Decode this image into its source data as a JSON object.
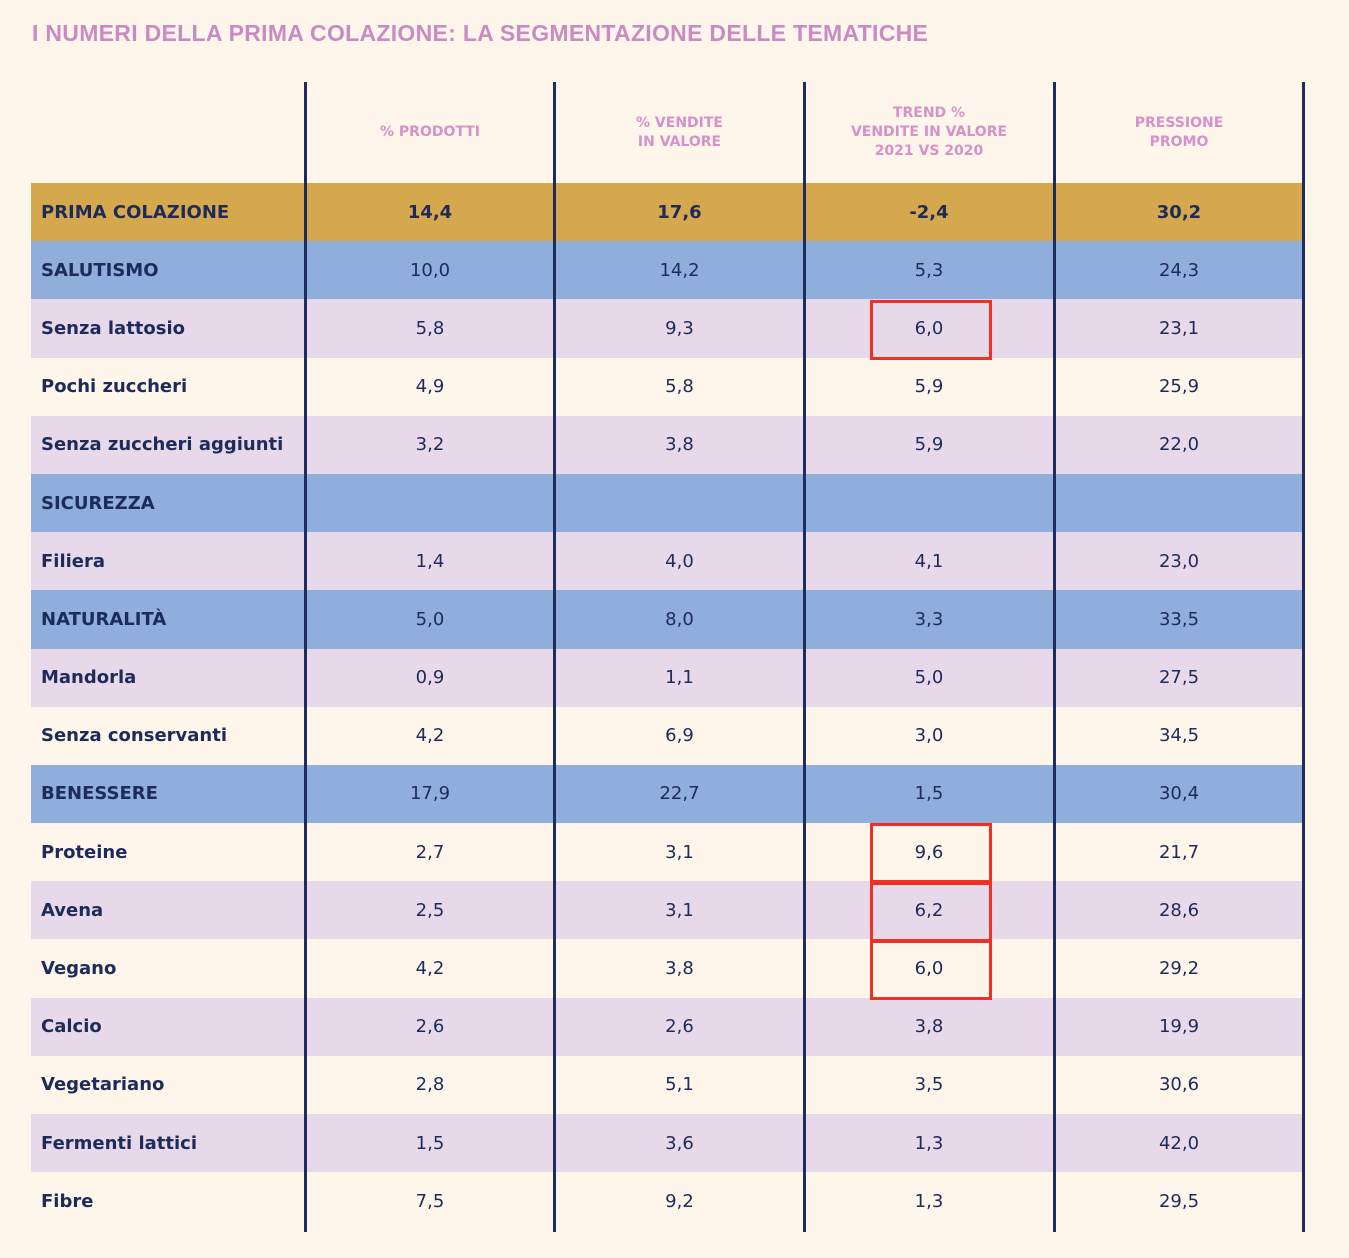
{
  "title": "I NUMERI DELLA PRIMA COLAZIONE: LA SEGMENTAZIONE DELLE TEMATICHE",
  "colors": {
    "background": "#FEF6EA",
    "title": "#C98BC1",
    "header": "#D591C8",
    "main_row": "#D6A84E",
    "category_row": "#8FAEDB",
    "alt_row": "#E8D9EA",
    "text": "#1C2B5A",
    "column_lines": "#1D2D5E",
    "highlight": "#EE3124"
  },
  "chart_data": {
    "type": "table",
    "title": "I NUMERI DELLA PRIMA COLAZIONE: LA SEGMENTAZIONE DELLE TEMATICHE",
    "columns": [
      "",
      "% PRODOTTI",
      "% VENDITE\nIN VALORE",
      "TREND %\nVENDITE IN VALORE\n2021 VS 2020",
      "PRESSIONE\nPROMO"
    ],
    "rows": [
      {
        "label": "PRIMA COLAZIONE",
        "kind": "main",
        "values": [
          "14,4",
          "17,6",
          "-2,4",
          "30,2"
        ]
      },
      {
        "label": "SALUTISMO",
        "kind": "cat",
        "values": [
          "10,0",
          "14,2",
          "5,3",
          "24,3"
        ]
      },
      {
        "label": "Senza lattosio",
        "kind": "sub-a",
        "values": [
          "5,8",
          "9,3",
          "6,0",
          "23,1"
        ]
      },
      {
        "label": "Pochi zuccheri",
        "kind": "sub-b",
        "values": [
          "4,9",
          "5,8",
          "5,9",
          "25,9"
        ]
      },
      {
        "label": "Senza zuccheri aggiunti",
        "kind": "sub-a",
        "values": [
          "3,2",
          "3,8",
          "5,9",
          "22,0"
        ]
      },
      {
        "label": "SICUREZZA",
        "kind": "cat",
        "values": [
          "",
          "",
          "",
          ""
        ]
      },
      {
        "label": "Filiera",
        "kind": "sub-a",
        "values": [
          "1,4",
          "4,0",
          "4,1",
          "23,0"
        ]
      },
      {
        "label": "NATURALITÀ",
        "kind": "cat",
        "values": [
          "5,0",
          "8,0",
          "3,3",
          "33,5"
        ]
      },
      {
        "label": "Mandorla",
        "kind": "sub-a",
        "values": [
          "0,9",
          "1,1",
          "5,0",
          "27,5"
        ]
      },
      {
        "label": "Senza conservanti",
        "kind": "sub-b",
        "values": [
          "4,2",
          "6,9",
          "3,0",
          "34,5"
        ]
      },
      {
        "label": "BENESSERE",
        "kind": "cat",
        "values": [
          "17,9",
          "22,7",
          "1,5",
          "30,4"
        ]
      },
      {
        "label": "Proteine",
        "kind": "sub-b",
        "values": [
          "2,7",
          "3,1",
          "9,6",
          "21,7"
        ]
      },
      {
        "label": "Avena",
        "kind": "sub-a",
        "values": [
          "2,5",
          "3,1",
          "6,2",
          "28,6"
        ]
      },
      {
        "label": "Vegano",
        "kind": "sub-b",
        "values": [
          "4,2",
          "3,8",
          "6,0",
          "29,2"
        ]
      },
      {
        "label": "Calcio",
        "kind": "sub-a",
        "values": [
          "2,6",
          "2,6",
          "3,8",
          "19,9"
        ]
      },
      {
        "label": "Vegetariano",
        "kind": "sub-b",
        "values": [
          "2,8",
          "5,1",
          "3,5",
          "30,6"
        ]
      },
      {
        "label": "Fermenti lattici",
        "kind": "sub-a",
        "values": [
          "1,5",
          "3,6",
          "1,3",
          "42,0"
        ]
      },
      {
        "label": "Fibre",
        "kind": "sub-b",
        "values": [
          "7,5",
          "9,2",
          "1,3",
          "29,5"
        ]
      }
    ],
    "highlighted_cells": [
      {
        "row": 2,
        "column": 3
      },
      {
        "row": 11,
        "column": 3
      },
      {
        "row": 12,
        "column": 3
      },
      {
        "row": 13,
        "column": 3
      }
    ]
  }
}
